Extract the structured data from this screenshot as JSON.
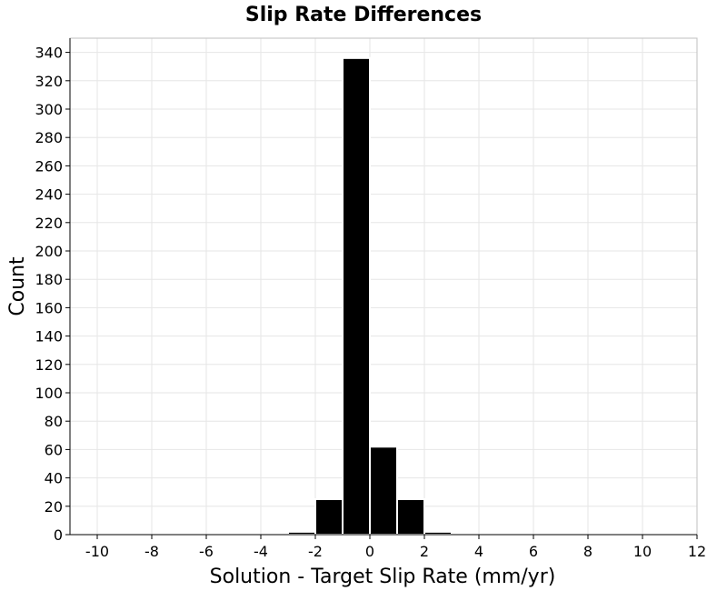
{
  "chart_data": {
    "type": "bar",
    "title": "Slip Rate Differences",
    "xlabel": "Solution - Target Slip Rate (mm/yr)",
    "ylabel": "Count",
    "xlim": [
      -11,
      12
    ],
    "ylim": [
      0,
      350
    ],
    "xticks": [
      -10,
      -8,
      -6,
      -4,
      -2,
      0,
      2,
      4,
      6,
      8,
      10,
      12
    ],
    "yticks": [
      0,
      20,
      40,
      60,
      80,
      100,
      120,
      140,
      160,
      180,
      200,
      220,
      240,
      260,
      280,
      300,
      320,
      340
    ],
    "bin_width": 1,
    "bins": [
      {
        "center": -2.5,
        "value": 2
      },
      {
        "center": -1.5,
        "value": 25
      },
      {
        "center": -0.5,
        "value": 336
      },
      {
        "center": 0.5,
        "value": 62
      },
      {
        "center": 1.5,
        "value": 25
      },
      {
        "center": 2.5,
        "value": 2
      }
    ],
    "grid": true,
    "colors": {
      "bar": "#000000",
      "bar_edge": "#ffffff",
      "grid": "#e6e6e6",
      "frame": "#bfbfbf"
    }
  }
}
